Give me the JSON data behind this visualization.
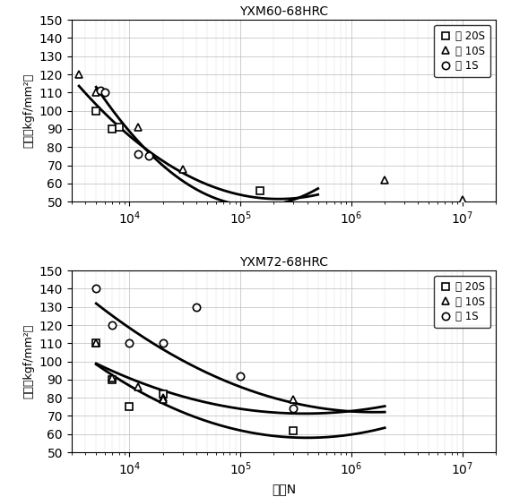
{
  "top_title": "YXM60-68HRC",
  "bottom_title": "YXM72-68HRC",
  "xlabel": "回数N",
  "ylabel": "応力（kgf/mm²）",
  "xlim": [
    3000,
    20000000.0
  ],
  "ylim": [
    50,
    150
  ],
  "yticks": [
    50,
    60,
    70,
    80,
    90,
    100,
    110,
    120,
    130,
    140,
    150
  ],
  "legend_labels": [
    "： 20S",
    "： 10S",
    "： 1S"
  ],
  "top_20S_scatter": [
    [
      5000,
      100
    ],
    [
      7000,
      90
    ],
    [
      8000,
      91
    ],
    [
      150000.0,
      56
    ]
  ],
  "top_10S_scatter": [
    [
      3500,
      120
    ],
    [
      5000,
      110
    ],
    [
      12000.0,
      91
    ],
    [
      30000.0,
      68
    ],
    [
      2000000.0,
      62
    ],
    [
      10000000.0,
      51
    ]
  ],
  "top_1S_scatter": [
    [
      5500,
      111
    ],
    [
      6000,
      110
    ],
    [
      12000.0,
      76
    ],
    [
      15000.0,
      75
    ]
  ],
  "top_curve1_pts": [
    [
      3500,
      120
    ],
    [
      5000,
      100
    ],
    [
      7000,
      90
    ],
    [
      8000,
      91
    ],
    [
      15000.0,
      76
    ],
    [
      30000.0,
      68
    ],
    [
      150000.0,
      56
    ],
    [
      400000.0,
      50
    ]
  ],
  "top_curve2_pts": [
    [
      5500,
      111
    ],
    [
      6000,
      110
    ],
    [
      12000.0,
      76
    ],
    [
      15000.0,
      75
    ],
    [
      150000.0,
      55
    ],
    [
      400000.0,
      50
    ]
  ],
  "bottom_20S_scatter": [
    [
      5000,
      110
    ],
    [
      7000,
      90
    ],
    [
      10000.0,
      75
    ],
    [
      20000.0,
      82
    ],
    [
      300000.0,
      62
    ]
  ],
  "bottom_10S_scatter": [
    [
      5000,
      110
    ],
    [
      7000,
      91
    ],
    [
      12000.0,
      86
    ],
    [
      20000.0,
      80
    ],
    [
      20000.0,
      79
    ],
    [
      300000.0,
      79
    ]
  ],
  "bottom_1S_scatter": [
    [
      5000,
      140
    ],
    [
      7000,
      120
    ],
    [
      10000.0,
      110
    ],
    [
      20000.0,
      110
    ],
    [
      40000.0,
      130
    ],
    [
      100000.0,
      92
    ],
    [
      300000.0,
      74
    ]
  ],
  "bottom_curve1_pts": [
    [
      5000,
      140
    ],
    [
      7000,
      120
    ],
    [
      10000.0,
      110
    ],
    [
      20000.0,
      110
    ],
    [
      100000.0,
      92
    ],
    [
      300000.0,
      74
    ],
    [
      500000.0,
      73
    ],
    [
      2000000.0,
      73
    ]
  ],
  "bottom_curve2_pts": [
    [
      5000,
      110
    ],
    [
      7000,
      91
    ],
    [
      10000.0,
      82
    ],
    [
      20000.0,
      80
    ],
    [
      100000.0,
      78
    ],
    [
      300000.0,
      75
    ],
    [
      2000000.0,
      73
    ]
  ],
  "bottom_curve3_pts": [
    [
      5000,
      110
    ],
    [
      7000,
      90
    ],
    [
      10000.0,
      75
    ],
    [
      20000.0,
      74
    ],
    [
      100000.0,
      66
    ],
    [
      300000.0,
      62
    ],
    [
      2000000.0,
      61
    ]
  ]
}
